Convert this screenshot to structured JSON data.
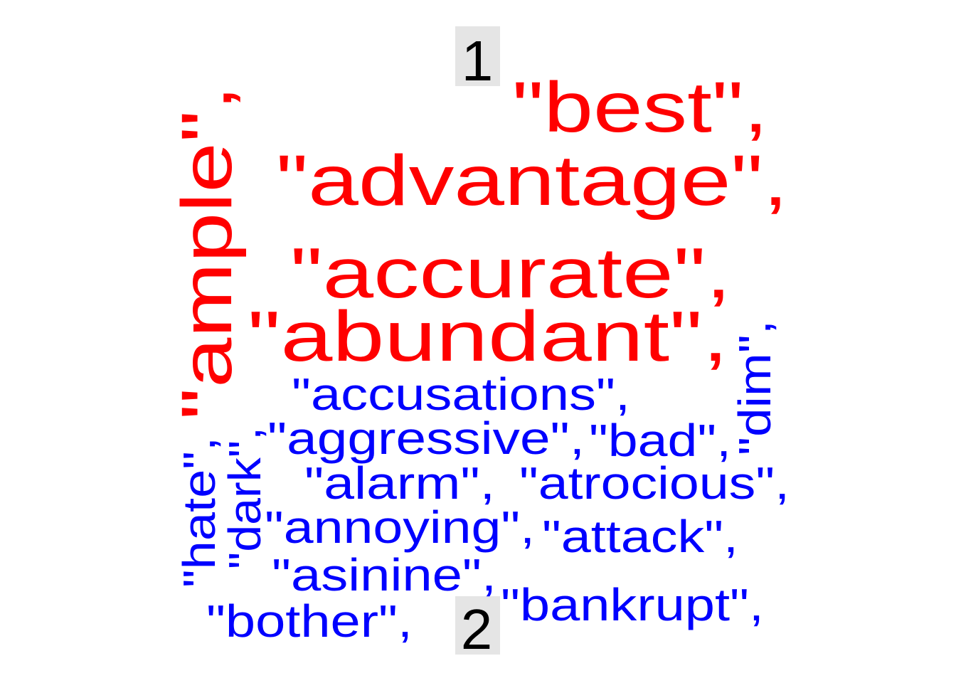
{
  "cluster_labels": [
    "1",
    "2"
  ],
  "colors": {
    "cluster_1": "#ff0000",
    "cluster_2": "#0000ff",
    "label_background": "#e5e5e5",
    "label_text": "#000000"
  },
  "words": {
    "best": "\"best\",",
    "advantage": "\"advantage\",",
    "accurate": "\"accurate\",",
    "abundant": "\"abundant\",",
    "ample": "\"ample\",",
    "accusations": "\"accusations\",",
    "aggressive": "\"aggressive\",",
    "bad": "\"bad\",",
    "dim": "\"dim\",",
    "alarm": "\"alarm\",",
    "atrocious": "\"atrocious\",",
    "annoying": "\"annoying\",",
    "attack": "\"attack\",",
    "asinine": "\"asinine\",",
    "bankrupt": "\"bankrupt\",",
    "bother": "\"bother\",",
    "hate": "\"hate\",",
    "dark": "\"dark\","
  }
}
